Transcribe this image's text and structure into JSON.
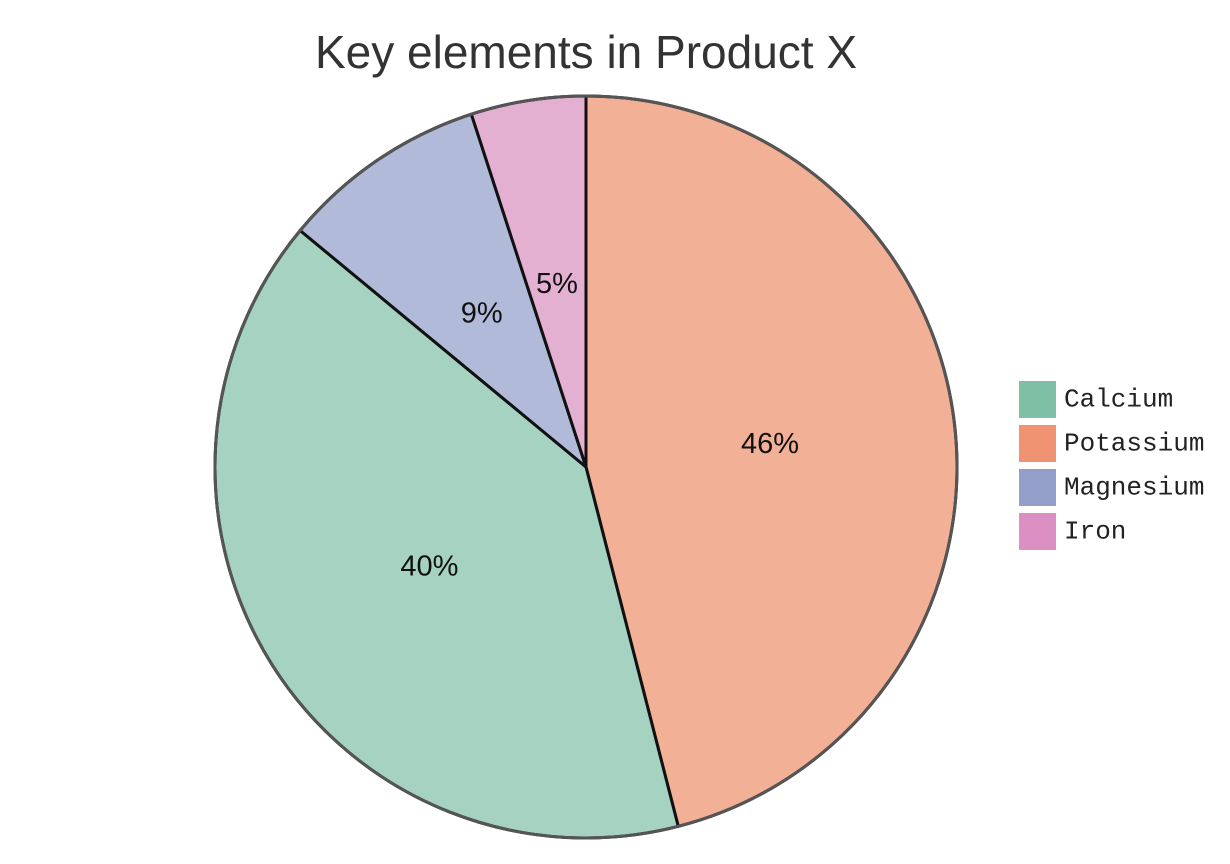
{
  "chart_data": {
    "type": "pie",
    "title": "Key elements in Product X",
    "categories": [
      "Potassium",
      "Calcium",
      "Magnesium",
      "Iron"
    ],
    "values": [
      46,
      40,
      9,
      5
    ],
    "labels": [
      "46%",
      "40%",
      "9%",
      "5%"
    ],
    "colors": [
      "#f2b097",
      "#a5d2c1",
      "#b1bbd9",
      "#e4b0d2"
    ],
    "start_angle": "12 o'clock",
    "direction": "clockwise",
    "legend": {
      "placement": "right",
      "entries": [
        {
          "name": "Calcium",
          "color": "#7fbfa5"
        },
        {
          "name": "Potassium",
          "color": "#ef9373"
        },
        {
          "name": "Magnesium",
          "color": "#939fc8"
        },
        {
          "name": "Iron",
          "color": "#db8fc3"
        }
      ]
    }
  }
}
